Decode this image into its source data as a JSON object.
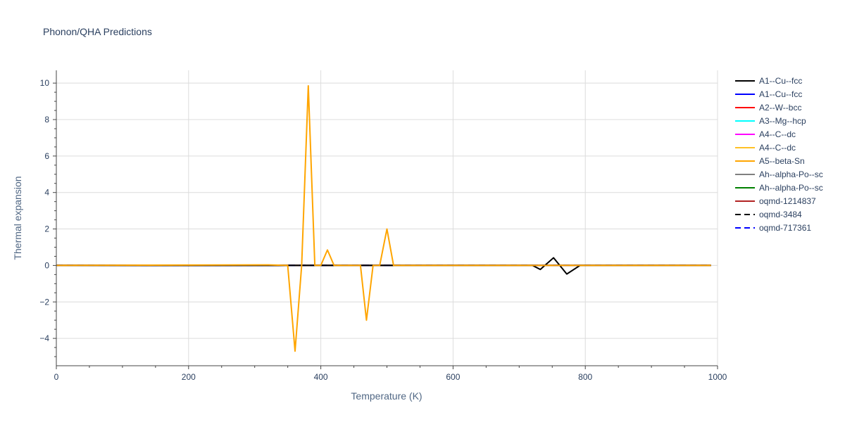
{
  "chart_data": {
    "type": "line",
    "title": "Phonon/QHA Predictions",
    "xlabel": "Temperature (K)",
    "ylabel": "Thermal expansion",
    "xlim": [
      0,
      1000
    ],
    "ylim": [
      -5.5,
      10.7
    ],
    "x_ticks": [
      0,
      200,
      400,
      600,
      800,
      1000
    ],
    "y_ticks": [
      -4,
      -2,
      0,
      2,
      4,
      6,
      8,
      10
    ],
    "y_tick_labels": [
      "−4",
      "−2",
      "0",
      "2",
      "4",
      "6",
      "8",
      "10"
    ],
    "grid": true,
    "legend_position": "right",
    "series": [
      {
        "name": "A1--Cu--fcc",
        "color": "#000000",
        "dash": "solid",
        "x": [
          0,
          720,
          732,
          752,
          772,
          792,
          990
        ],
        "y": [
          0,
          0,
          -0.22,
          0.42,
          -0.47,
          0,
          0
        ]
      },
      {
        "name": "A1--Cu--fcc",
        "color": "#0000ff",
        "dash": "solid",
        "x": [
          0,
          990
        ],
        "y": [
          0,
          0
        ]
      },
      {
        "name": "A2--W--bcc",
        "color": "#ff0000",
        "dash": "solid",
        "x": [
          0,
          990
        ],
        "y": [
          0,
          0
        ]
      },
      {
        "name": "A3--Mg--hcp",
        "color": "#00ffff",
        "dash": "solid",
        "x": [
          0,
          990
        ],
        "y": [
          0,
          0
        ]
      },
      {
        "name": "A4--C--dc",
        "color": "#ff00ff",
        "dash": "solid",
        "x": [
          0,
          990
        ],
        "y": [
          0,
          0
        ]
      },
      {
        "name": "A4--C--dc",
        "color": "#ffc125",
        "dash": "solid",
        "x": [
          0,
          990
        ],
        "y": [
          0,
          0
        ]
      },
      {
        "name": "A5--beta-Sn",
        "color": "#ffa500",
        "dash": "solid",
        "x": [
          0,
          320,
          350,
          361,
          371,
          381,
          391,
          400,
          410,
          420,
          460,
          469,
          479,
          489,
          500,
          510,
          520,
          990
        ],
        "y": [
          0,
          0.03,
          0,
          -4.7,
          0,
          9.85,
          0,
          0,
          0.85,
          0,
          0,
          -3.0,
          0,
          0,
          2.0,
          0,
          0,
          0
        ]
      },
      {
        "name": "Ah--alpha-Po--sc",
        "color": "#808080",
        "dash": "solid",
        "x": [
          0,
          990
        ],
        "y": [
          0,
          0
        ]
      },
      {
        "name": "Ah--alpha-Po--sc",
        "color": "#008000",
        "dash": "solid",
        "x": [
          0,
          990
        ],
        "y": [
          0,
          0
        ]
      },
      {
        "name": "oqmd-1214837",
        "color": "#b22222",
        "dash": "solid",
        "x": [
          0,
          990
        ],
        "y": [
          0,
          0
        ]
      },
      {
        "name": "oqmd-3484",
        "color": "#000000",
        "dash": "dash",
        "x": [
          0,
          990
        ],
        "y": [
          0,
          0
        ]
      },
      {
        "name": "oqmd-717361",
        "color": "#0000ff",
        "dash": "dash",
        "x": [
          0,
          990
        ],
        "y": [
          0,
          0
        ]
      }
    ]
  }
}
